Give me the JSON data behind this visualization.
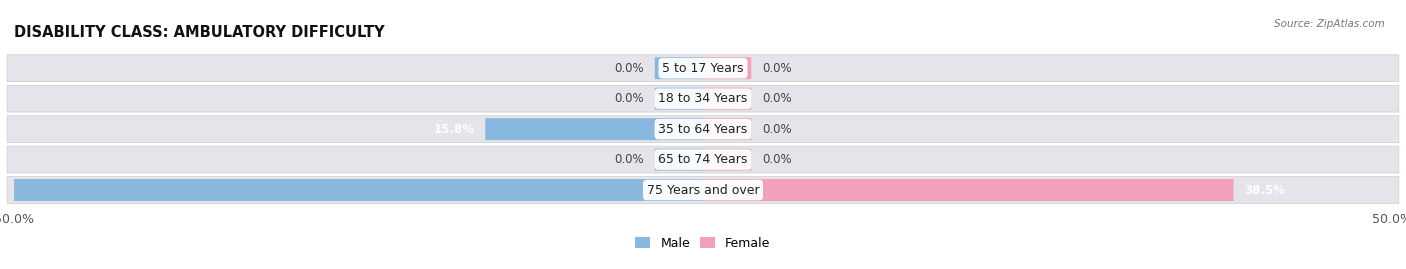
{
  "title": "DISABILITY CLASS: AMBULATORY DIFFICULTY",
  "source": "Source: ZipAtlas.com",
  "categories": [
    "5 to 17 Years",
    "18 to 34 Years",
    "35 to 64 Years",
    "65 to 74 Years",
    "75 Years and over"
  ],
  "male_values": [
    0.0,
    0.0,
    15.8,
    0.0,
    50.0
  ],
  "female_values": [
    0.0,
    0.0,
    0.0,
    0.0,
    38.5
  ],
  "xlim": 50.0,
  "male_color": "#88b8de",
  "female_color": "#f2a0bb",
  "row_bg_light": "#e8e8ee",
  "row_bg_dark": "#7aadd4",
  "label_color": "#333333",
  "title_fontsize": 10.5,
  "axis_label_fontsize": 9,
  "cat_fontsize": 9,
  "value_fontsize": 8.5,
  "legend_fontsize": 9,
  "bar_height": 0.72,
  "min_stub": 3.5
}
